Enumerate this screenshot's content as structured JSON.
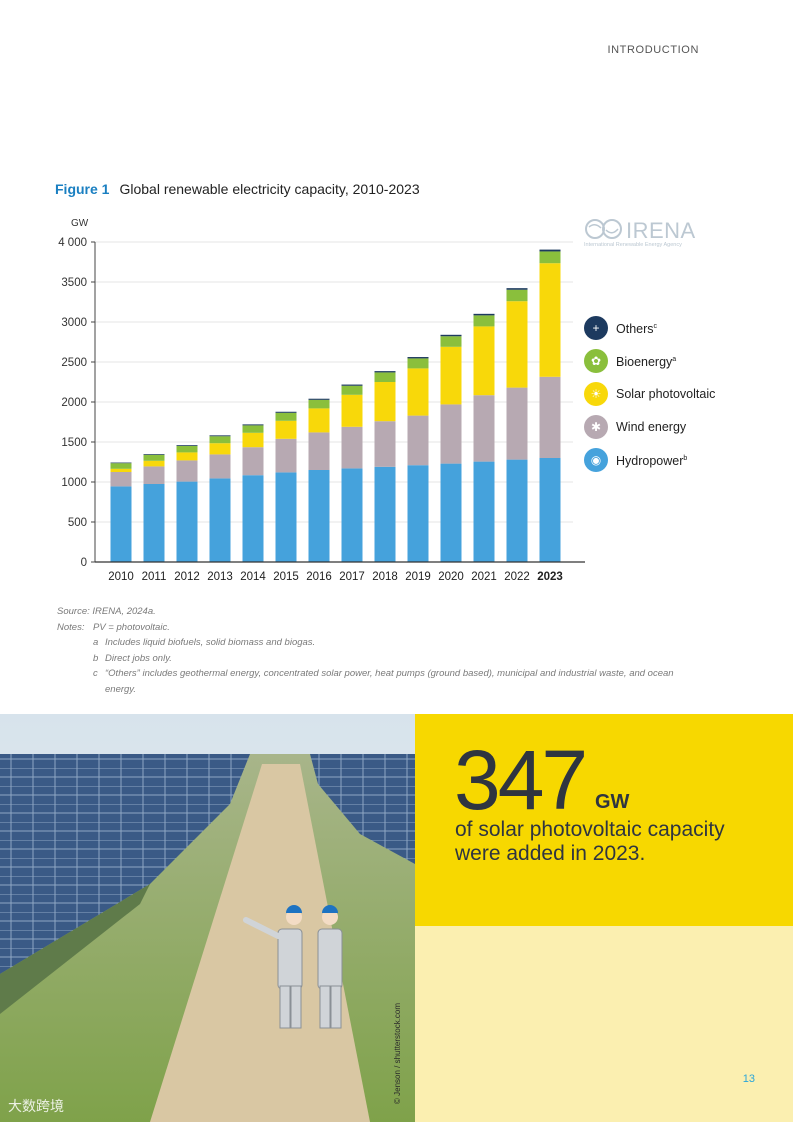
{
  "header": {
    "section": "INTRODUCTION"
  },
  "figure": {
    "number": "Figure 1",
    "title": "Global renewable electricity capacity, 2010-2023"
  },
  "logo": {
    "name": "IRENA",
    "subtitle": "International Renewable Energy Agency"
  },
  "chart_data": {
    "type": "bar",
    "stacked": true,
    "ylabel": "GW",
    "ylim": [
      0,
      4000
    ],
    "yticks": [
      0,
      500,
      1000,
      1500,
      2000,
      2500,
      3000,
      3500,
      4000
    ],
    "ytick_labels": [
      "0",
      "500",
      "1000",
      "1500",
      "2000",
      "2500",
      "3000",
      "3500",
      "4 000"
    ],
    "grid": true,
    "legend_position": "right",
    "categories": [
      "2010",
      "2011",
      "2012",
      "2013",
      "2014",
      "2015",
      "2016",
      "2017",
      "2018",
      "2019",
      "2020",
      "2021",
      "2022",
      "2023"
    ],
    "highlight_category": "2023",
    "series": [
      {
        "name": "Hydropower",
        "sup": "b",
        "color": "#45a2dc",
        "icon": "water-drop-icon",
        "values": [
          945,
          975,
          1005,
          1045,
          1085,
          1120,
          1150,
          1170,
          1190,
          1210,
          1230,
          1255,
          1280,
          1300
        ]
      },
      {
        "name": "Wind energy",
        "sup": "",
        "color": "#b7a9b2",
        "icon": "wind-turbine-icon",
        "values": [
          180,
          220,
          265,
          300,
          350,
          420,
          470,
          520,
          570,
          620,
          740,
          830,
          900,
          1015
        ]
      },
      {
        "name": "Solar photovoltaic",
        "sup": "",
        "color": "#f8d80a",
        "icon": "sun-icon",
        "values": [
          40,
          70,
          100,
          140,
          180,
          225,
          300,
          400,
          490,
          590,
          720,
          860,
          1080,
          1420
        ]
      },
      {
        "name": "Bioenergy",
        "sup": "a",
        "color": "#8abf3c",
        "icon": "leaf-icon",
        "values": [
          70,
          75,
          80,
          87,
          93,
          100,
          107,
          113,
          120,
          125,
          132,
          138,
          143,
          147
        ]
      },
      {
        "name": "Others",
        "sup": "c",
        "color": "#1d3a5f",
        "icon": "plug-icon",
        "values": [
          8,
          9,
          10,
          11,
          12,
          13,
          14,
          15,
          16,
          17,
          18,
          19,
          20,
          23
        ]
      }
    ]
  },
  "legend_labels": {
    "others": "Others",
    "bioenergy": "Bioenergy",
    "solar": "Solar photovoltaic",
    "wind": "Wind energy",
    "hydro": "Hydropower"
  },
  "notes": {
    "source": "Source: IRENA, 2024a.",
    "label": "Notes:",
    "pv": "PV = photovoltaic.",
    "a_key": "a",
    "a": "Includes liquid biofuels, solid biomass and biogas.",
    "b_key": "b",
    "b": "Direct jobs only.",
    "c_key": "c",
    "c": "“Others” includes geothermal energy, concentrated solar power, heat pumps (ground based), municipal and industrial waste, and ocean energy."
  },
  "photo": {
    "credit": "© Jenson / shutterstock.com",
    "watermark": "大数跨境"
  },
  "callout": {
    "number": "347",
    "unit": "GW",
    "text": "of solar photovoltaic capacity were added in 2023."
  },
  "page": {
    "number": "13"
  }
}
